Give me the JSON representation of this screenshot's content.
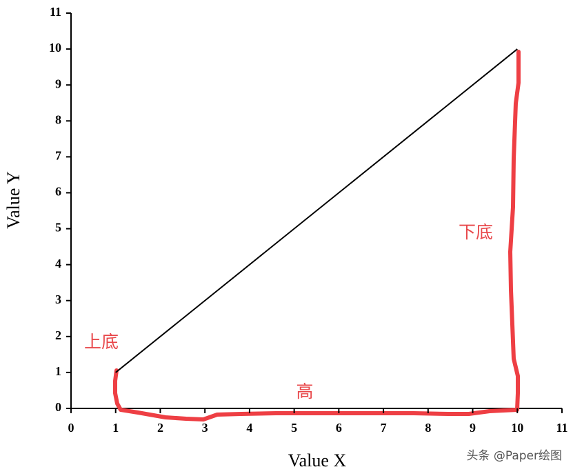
{
  "chart_data": {
    "type": "line",
    "x": [
      1,
      10
    ],
    "values": [
      1,
      10
    ],
    "color": "#000000",
    "xlim": [
      0,
      11
    ],
    "ylim": [
      0,
      11
    ],
    "xticks": [
      0,
      1,
      2,
      3,
      4,
      5,
      6,
      7,
      8,
      9,
      10,
      11
    ],
    "yticks": [
      0,
      1,
      2,
      3,
      4,
      5,
      6,
      7,
      8,
      9,
      10,
      11
    ],
    "x_label": "Value X",
    "y_label": "Value Y",
    "annotations": [
      "上底",
      "下底",
      "高"
    ],
    "watermark": "头条 @Paper绘图"
  }
}
